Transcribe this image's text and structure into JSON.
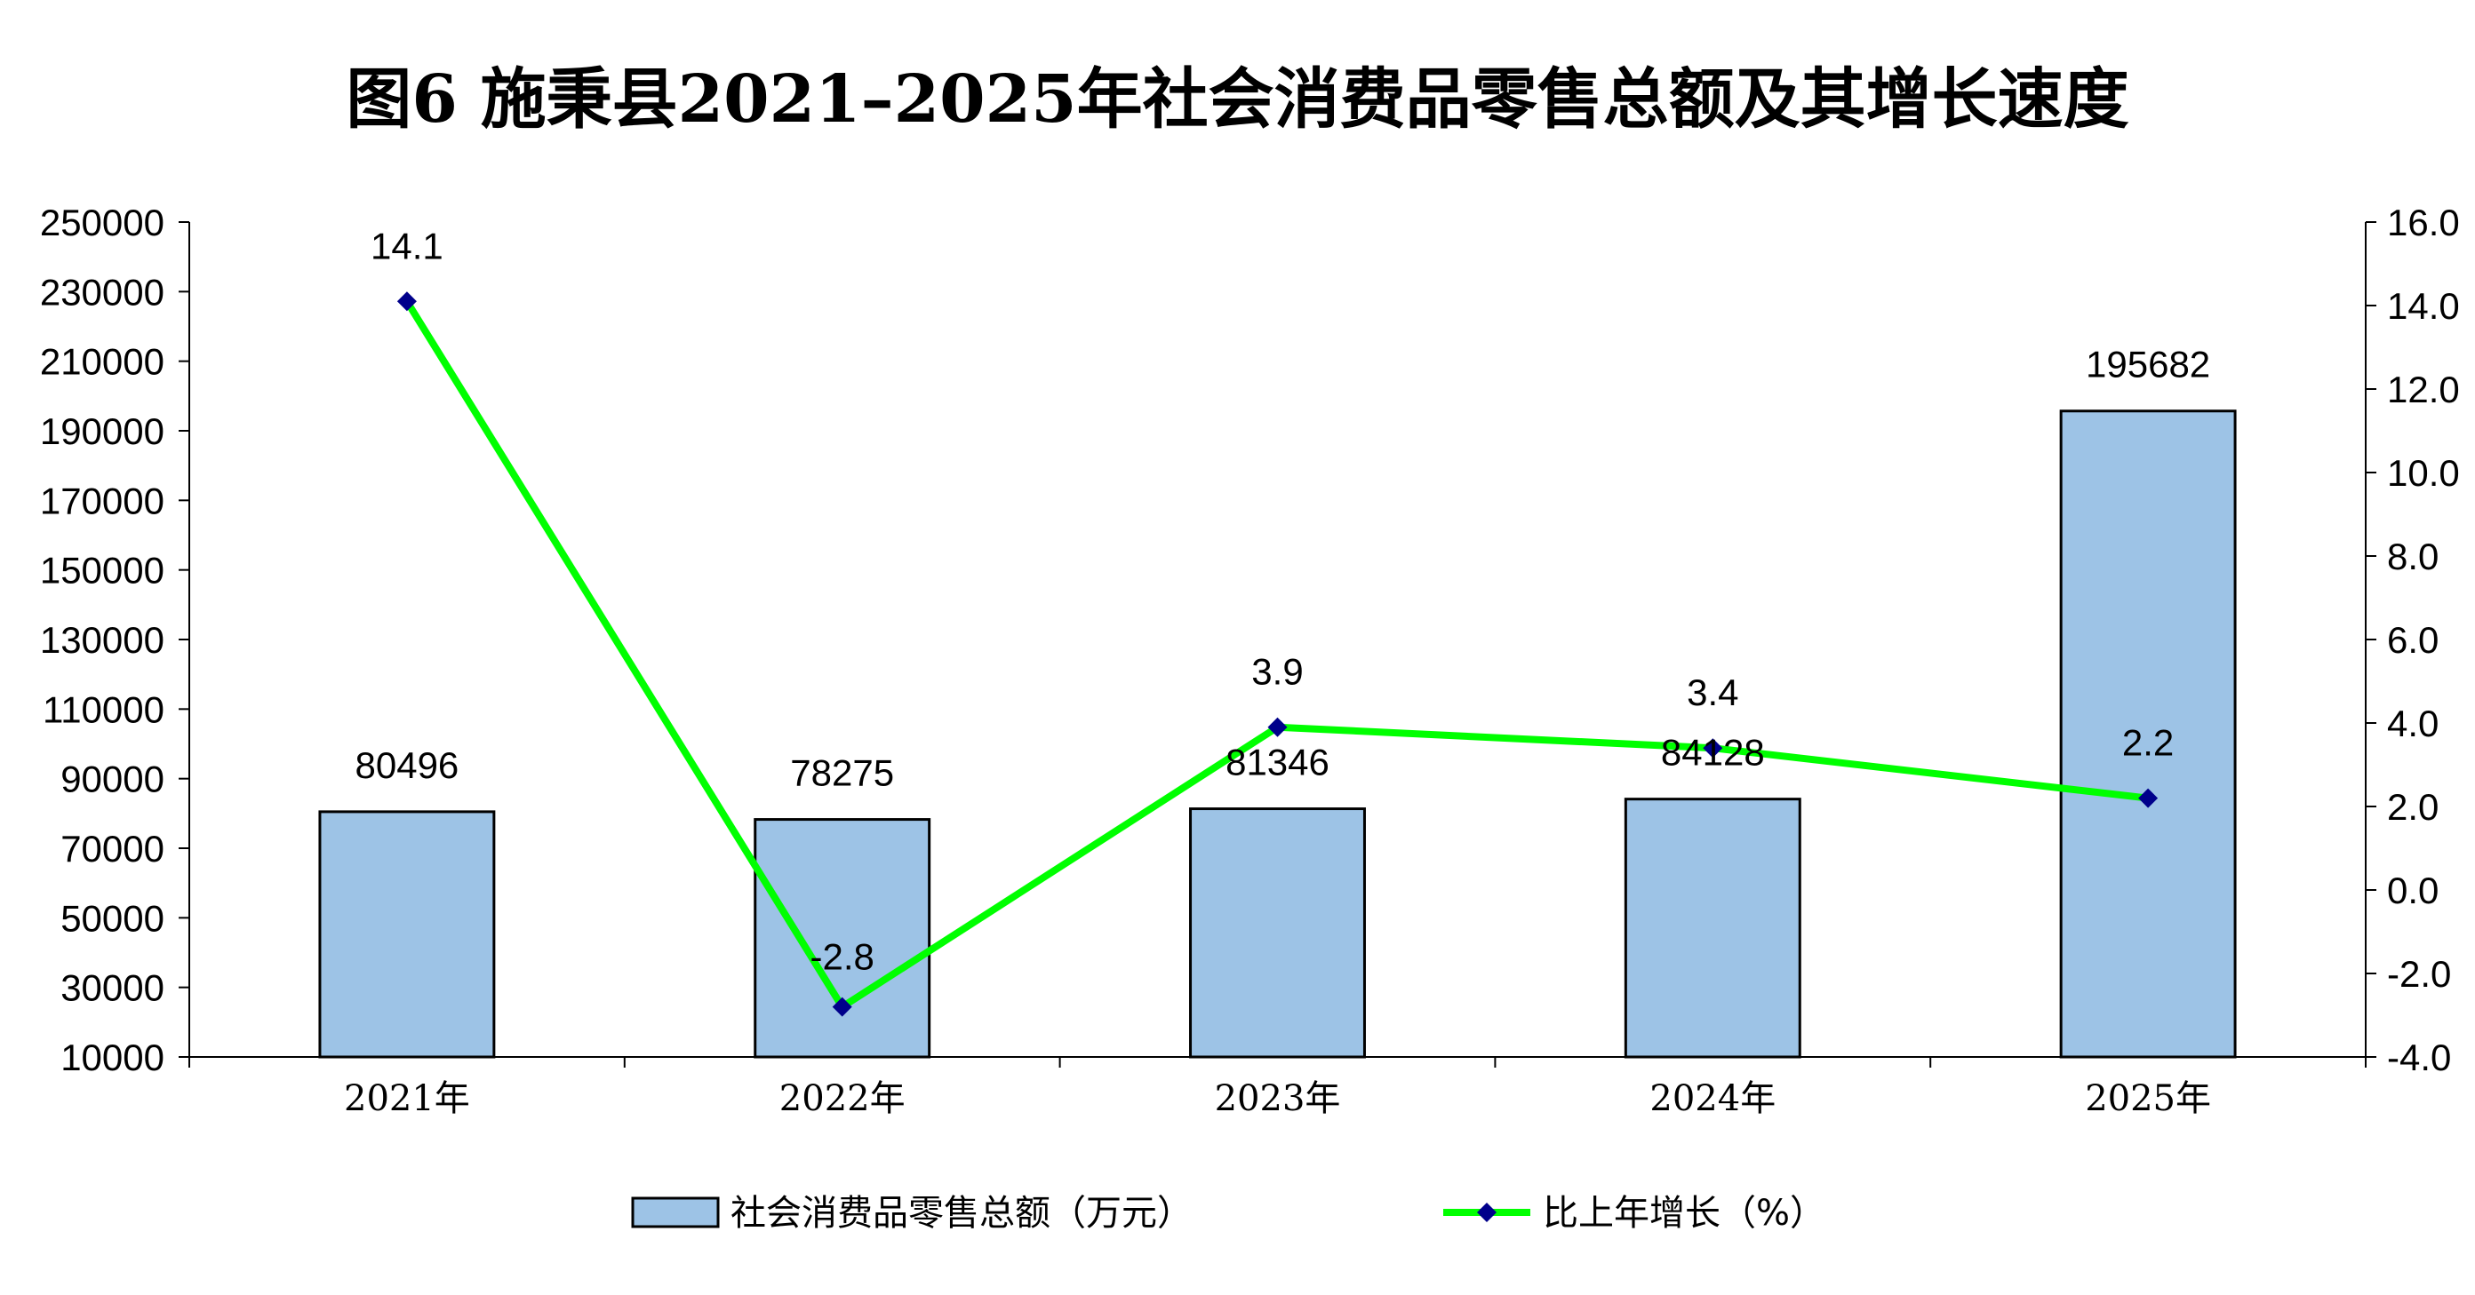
{
  "title": "图6  施秉县2021–2025年社会消费品零售总额及其增长速度",
  "chart_data": {
    "type": "bar",
    "categories": [
      "2021年",
      "2022年",
      "2023年",
      "2024年",
      "2025年"
    ],
    "series": [
      {
        "name": "社会消费品零售总额（万元）",
        "type": "bar",
        "axis": "left",
        "values": [
          80496,
          78275,
          81346,
          84128,
          195682
        ]
      },
      {
        "name": "比上年增长（%）",
        "type": "line",
        "axis": "right",
        "values": [
          14.1,
          -2.8,
          3.9,
          3.4,
          2.2
        ]
      }
    ],
    "y_left": {
      "min": 10000,
      "max": 250000,
      "step": 20000,
      "ticks": [
        "250000",
        "230000",
        "210000",
        "190000",
        "170000",
        "150000",
        "130000",
        "110000",
        "90000",
        "70000",
        "50000",
        "30000",
        "10000"
      ]
    },
    "y_right": {
      "min": -4.0,
      "max": 16.0,
      "step": 2.0,
      "ticks": [
        "16.0",
        "14.0",
        "12.0",
        "10.0",
        "8.0",
        "6.0",
        "4.0",
        "2.0",
        "0.0",
        "-2.0",
        "-4.0"
      ]
    },
    "bar_labels": [
      "80496",
      "78275",
      "81346",
      "84128",
      "195682"
    ],
    "line_labels": [
      "14.1",
      "-2.8",
      "3.9",
      "3.4",
      "2.2"
    ],
    "colors": {
      "bar_fill": "#9DC3E6",
      "bar_stroke": "#000000",
      "line": "#00FF00",
      "marker": "#00008B"
    },
    "legend_position": "bottom",
    "grid": false
  }
}
